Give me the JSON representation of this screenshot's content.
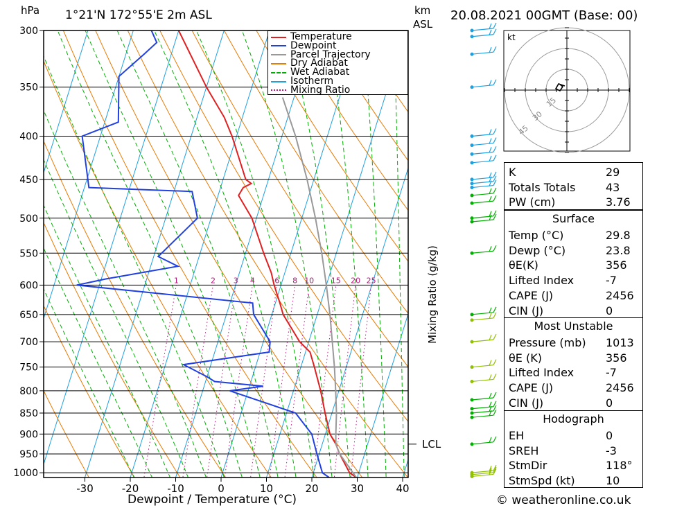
{
  "header": {
    "pressure_unit": "hPa",
    "location": "1°21'N  172°55'E  2m  ASL",
    "height_unit_line1": "km",
    "height_unit_line2": "ASL",
    "datetime": "20.08.2021  00GMT  (Base: 00)"
  },
  "legend": [
    {
      "label": "Temperature",
      "color": "#e02020",
      "style": "solid"
    },
    {
      "label": "Dewpoint",
      "color": "#2040e0",
      "style": "solid"
    },
    {
      "label": "Parcel Trajectory",
      "color": "#999999",
      "style": "solid"
    },
    {
      "label": "Dry Adiabat",
      "color": "#e87a00",
      "style": "solid"
    },
    {
      "label": "Wet Adiabat",
      "color": "#00b000",
      "style": "dashed"
    },
    {
      "label": "Isotherm",
      "color": "#1ca0e0",
      "style": "solid"
    },
    {
      "label": "Mixing Ratio",
      "color": "#c01080",
      "style": "dotted"
    }
  ],
  "chart_data": {
    "type": "skew-t",
    "xlabel": "Dewpoint / Temperature (°C)",
    "ylabel": "hPa",
    "right_axis_label": "Mixing Ratio (g/kg)",
    "pressure_levels": [
      300,
      350,
      400,
      450,
      500,
      550,
      600,
      650,
      700,
      750,
      800,
      850,
      900,
      950,
      1000
    ],
    "temperature_ticks": [
      -30,
      -20,
      -10,
      0,
      10,
      20,
      30,
      40
    ],
    "xlim": [
      -40,
      40
    ],
    "ylim_hpa": [
      1013,
      300
    ],
    "mixing_ratio_labels": [
      "1",
      "2",
      "3",
      "4",
      "6",
      "8",
      "10",
      "15",
      "20",
      "25"
    ],
    "lcl_label": "LCL",
    "lcl_pressure": 925,
    "series": [
      {
        "name": "Temperature",
        "points": [
          [
            1013,
            29.8
          ],
          [
            1000,
            28.0
          ],
          [
            950,
            24.5
          ],
          [
            925,
            23.0
          ],
          [
            900,
            21.0
          ],
          [
            850,
            18.5
          ],
          [
            800,
            16.0
          ],
          [
            750,
            13.0
          ],
          [
            720,
            11.0
          ],
          [
            700,
            8.0
          ],
          [
            650,
            2.5
          ],
          [
            630,
            1.0
          ],
          [
            600,
            -1.5
          ],
          [
            580,
            -3.0
          ],
          [
            550,
            -6.0
          ],
          [
            500,
            -11.0
          ],
          [
            470,
            -15.5
          ],
          [
            460,
            -15.0
          ],
          [
            455,
            -13.5
          ],
          [
            450,
            -15.0
          ],
          [
            400,
            -21.0
          ],
          [
            380,
            -24.0
          ],
          [
            350,
            -30.0
          ],
          [
            300,
            -40.0
          ]
        ]
      },
      {
        "name": "Dewpoint",
        "points": [
          [
            1013,
            23.8
          ],
          [
            1000,
            22.0
          ],
          [
            950,
            19.5
          ],
          [
            900,
            17.0
          ],
          [
            850,
            12.0
          ],
          [
            800,
            -4.0
          ],
          [
            790,
            3.0
          ],
          [
            780,
            -8.0
          ],
          [
            770,
            -10.0
          ],
          [
            745,
            -16.0
          ],
          [
            720,
            2.0
          ],
          [
            700,
            1.5
          ],
          [
            650,
            -4.0
          ],
          [
            630,
            -5.0
          ],
          [
            600,
            -45.0
          ],
          [
            590,
            -39.0
          ],
          [
            570,
            -24.0
          ],
          [
            555,
            -29.0
          ],
          [
            500,
            -23.0
          ],
          [
            465,
            -26.0
          ],
          [
            460,
            -49.0
          ],
          [
            400,
            -54.0
          ],
          [
            385,
            -47.0
          ],
          [
            340,
            -50.0
          ],
          [
            320,
            -46.0
          ],
          [
            310,
            -44.0
          ],
          [
            300,
            -46.0
          ]
        ]
      },
      {
        "name": "Parcel Trajectory",
        "points": [
          [
            1013,
            29.8
          ],
          [
            950,
            24.5
          ],
          [
            925,
            23.0
          ],
          [
            900,
            22.3
          ],
          [
            850,
            21.0
          ],
          [
            800,
            19.3
          ],
          [
            750,
            17.4
          ],
          [
            700,
            15.2
          ],
          [
            650,
            12.8
          ],
          [
            600,
            10.0
          ],
          [
            550,
            6.8
          ],
          [
            500,
            3.0
          ],
          [
            450,
            -1.5
          ],
          [
            400,
            -7.0
          ],
          [
            360,
            -12.5
          ]
        ]
      }
    ]
  },
  "hodograph": {
    "unit": "kt",
    "ring_labels": [
      "15",
      "30",
      "45"
    ]
  },
  "indices": {
    "basic": [
      {
        "label": "K",
        "value": "29"
      },
      {
        "label": "Totals Totals",
        "value": "43"
      },
      {
        "label": "PW (cm)",
        "value": "3.76"
      }
    ],
    "surface": {
      "title": "Surface",
      "rows": [
        {
          "label": "Temp (°C)",
          "value": "29.8"
        },
        {
          "label": "Dewp (°C)",
          "value": "23.8"
        },
        {
          "label": "θE(K)",
          "value": "356"
        },
        {
          "label": "Lifted Index",
          "value": "-7"
        },
        {
          "label": "CAPE (J)",
          "value": "2456"
        },
        {
          "label": "CIN (J)",
          "value": "0"
        }
      ]
    },
    "most_unstable": {
      "title": "Most Unstable",
      "rows": [
        {
          "label": "Pressure (mb)",
          "value": "1013"
        },
        {
          "label": "θE (K)",
          "value": "356"
        },
        {
          "label": "Lifted Index",
          "value": "-7"
        },
        {
          "label": "CAPE (J)",
          "value": "2456"
        },
        {
          "label": "CIN (J)",
          "value": "0"
        }
      ]
    },
    "hodograph": {
      "title": "Hodograph",
      "rows": [
        {
          "label": "EH",
          "value": "0"
        },
        {
          "label": "SREH",
          "value": "-3"
        },
        {
          "label": "StmDir",
          "value": "118°"
        },
        {
          "label": "StmSpd (kt)",
          "value": "10"
        }
      ]
    }
  },
  "footer": {
    "copyright": "© weatheronline.co.uk"
  }
}
